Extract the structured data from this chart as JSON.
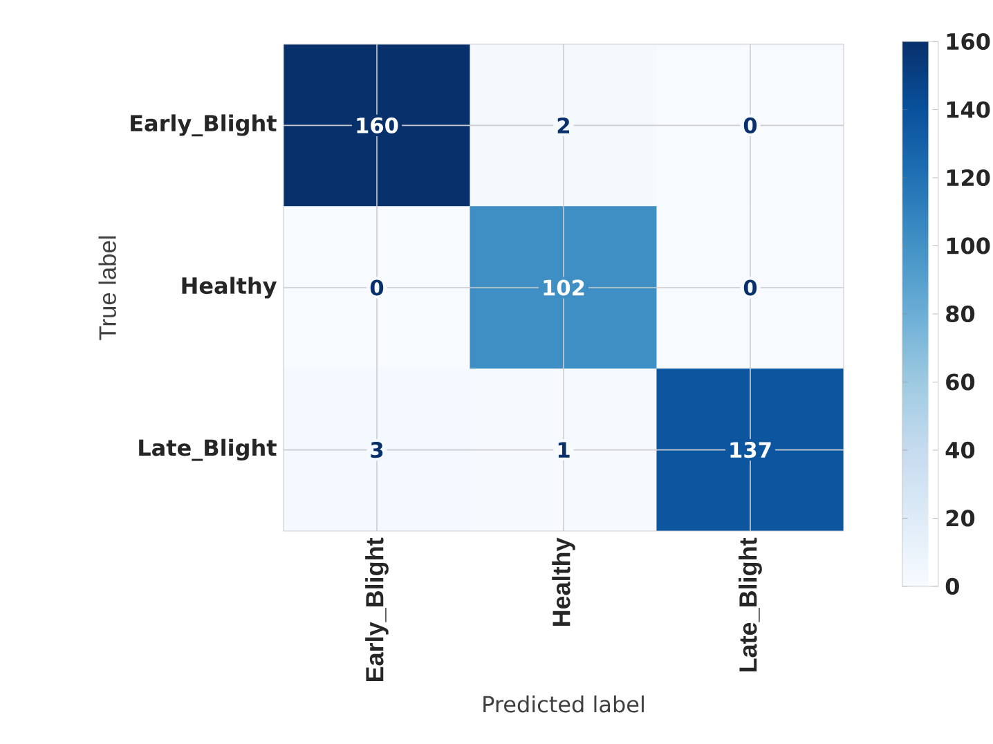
{
  "chart_data": {
    "type": "heatmap",
    "xlabel": "Predicted label",
    "ylabel": "True label",
    "categories": [
      "Early_Blight",
      "Healthy",
      "Late_Blight"
    ],
    "y_categories": [
      "Early_Blight",
      "Healthy",
      "Late_Blight"
    ],
    "cells": [
      [
        160,
        2,
        0
      ],
      [
        0,
        102,
        0
      ],
      [
        3,
        1,
        137
      ]
    ],
    "clim": [
      0,
      160
    ],
    "cticks": [
      0,
      20,
      40,
      60,
      80,
      100,
      120,
      140,
      160
    ],
    "grid": true,
    "data_labels": true
  }
}
